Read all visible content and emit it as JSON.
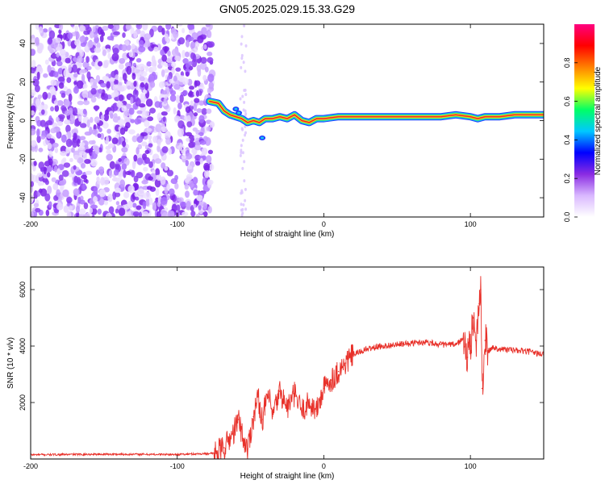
{
  "title": "GN05.2025.029.15.33.G29",
  "chart_data": [
    {
      "type": "heatmap",
      "xlabel": "Height of straight line (km)",
      "ylabel": "Frequency (Hz)",
      "xlim": [
        -200,
        150
      ],
      "ylim": [
        -50,
        50
      ],
      "xticks": [
        -200,
        -100,
        0,
        100
      ],
      "yticks": [
        -40,
        -20,
        0,
        20,
        40
      ],
      "grid": false,
      "description_of_field": "Scattered low-to-mid amplitude noise (purple/lavender) for heights below about -75 km; a narrow high-amplitude band near 0-10 Hz from about -78 km to 150 km, peaking near 2 Hz.",
      "band_center_hz": [
        [
          -78,
          10
        ],
        [
          -72,
          9
        ],
        [
          -68,
          5
        ],
        [
          -64,
          3
        ],
        [
          -60,
          2
        ],
        [
          -56,
          1
        ],
        [
          -52,
          -1
        ],
        [
          -48,
          0
        ],
        [
          -44,
          -1
        ],
        [
          -40,
          1
        ],
        [
          -35,
          1
        ],
        [
          -30,
          2
        ],
        [
          -25,
          1
        ],
        [
          -20,
          3
        ],
        [
          -15,
          0
        ],
        [
          -10,
          -1
        ],
        [
          -5,
          1
        ],
        [
          0,
          1
        ],
        [
          10,
          2
        ],
        [
          20,
          2
        ],
        [
          40,
          2
        ],
        [
          60,
          2
        ],
        [
          80,
          2
        ],
        [
          90,
          3
        ],
        [
          100,
          2
        ],
        [
          105,
          1
        ],
        [
          110,
          2
        ],
        [
          120,
          2
        ],
        [
          130,
          3
        ],
        [
          140,
          3
        ],
        [
          150,
          3
        ]
      ],
      "colorbar": {
        "label": "Normalized spectral amplitude",
        "range": [
          0,
          1
        ],
        "ticks": [
          "0.0",
          "0.2",
          "0.4",
          "0.6",
          "0.8"
        ],
        "colors": [
          "#ffffff",
          "#d9b8ff",
          "#8a2be2",
          "#0000ff",
          "#00c8ff",
          "#00ff66",
          "#ffff00",
          "#ff8000",
          "#ff0000",
          "#ff0080"
        ]
      }
    },
    {
      "type": "line",
      "xlabel": "Height of straight line (km)",
      "ylabel": "SNR (10 * v/v)",
      "xlim": [
        -200,
        150
      ],
      "ylim": [
        0,
        6800
      ],
      "xticks": [
        -200,
        -100,
        0,
        100
      ],
      "yticks": [
        2000,
        4000,
        6000
      ],
      "grid": false,
      "series": [
        {
          "color": "#e8312a",
          "x": [
            -200,
            -150,
            -100,
            -75,
            -68,
            -62,
            -58,
            -55,
            -52,
            -48,
            -45,
            -42,
            -38,
            -35,
            -30,
            -25,
            -20,
            -15,
            -10,
            -5,
            0,
            5,
            10,
            15,
            20,
            25,
            30,
            40,
            50,
            60,
            70,
            80,
            90,
            95,
            98,
            100,
            102,
            104,
            106,
            107,
            108,
            110,
            112,
            115,
            120,
            130,
            140,
            150
          ],
          "y": [
            150,
            170,
            160,
            200,
            400,
            900,
            1400,
            700,
            350,
            1500,
            2200,
            1400,
            2300,
            1500,
            2400,
            1800,
            2300,
            1700,
            2000,
            1700,
            2500,
            2800,
            3100,
            3400,
            3700,
            3800,
            3900,
            4000,
            4050,
            4100,
            4150,
            4050,
            4050,
            4250,
            3600,
            4000,
            5000,
            4200,
            5500,
            6000,
            2500,
            4200,
            3800,
            3950,
            3900,
            3850,
            3800,
            3700
          ]
        }
      ]
    }
  ]
}
